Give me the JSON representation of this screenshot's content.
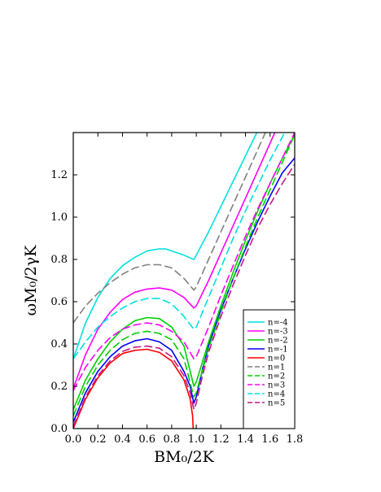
{
  "chart_data": {
    "type": "line",
    "xlabel": "BM₀/2K",
    "ylabel": "ωM₀/2γK",
    "xlim": [
      0.0,
      1.8
    ],
    "ylim": [
      0.0,
      1.4
    ],
    "xticks": [
      "0.0",
      "0.2",
      "0.4",
      "0.6",
      "0.8",
      "1.0",
      "1.2",
      "1.4",
      "1.6",
      "1.8"
    ],
    "yticks": [
      "0.0",
      "0.2",
      "0.4",
      "0.6",
      "0.8",
      "1.0",
      "1.2"
    ],
    "legend_position": "bottom-right",
    "series": [
      {
        "name": "n=-4",
        "color": "#00e0e0",
        "dash": "solid",
        "x": [
          0,
          0.1,
          0.2,
          0.3,
          0.4,
          0.5,
          0.6,
          0.7,
          0.75,
          0.8,
          0.9,
          0.98,
          1.0,
          1.1,
          1.2,
          1.3,
          1.4,
          1.5,
          1.6
        ],
        "y": [
          0.33,
          0.5,
          0.62,
          0.71,
          0.77,
          0.81,
          0.84,
          0.85,
          0.85,
          0.84,
          0.82,
          0.8,
          0.82,
          0.93,
          1.05,
          1.17,
          1.29,
          1.41,
          1.53
        ]
      },
      {
        "name": "n=-3",
        "color": "#ff00ff",
        "dash": "solid",
        "x": [
          0,
          0.1,
          0.2,
          0.3,
          0.4,
          0.5,
          0.6,
          0.7,
          0.8,
          0.9,
          0.98,
          1.0,
          1.1,
          1.2,
          1.3,
          1.4,
          1.5,
          1.6,
          1.7
        ],
        "y": [
          0.19,
          0.35,
          0.47,
          0.55,
          0.61,
          0.645,
          0.66,
          0.665,
          0.655,
          0.62,
          0.57,
          0.58,
          0.7,
          0.83,
          0.96,
          1.09,
          1.22,
          1.35,
          1.48
        ]
      },
      {
        "name": "n=-2",
        "color": "#00d000",
        "dash": "solid",
        "x": [
          0,
          0.1,
          0.2,
          0.3,
          0.4,
          0.5,
          0.6,
          0.7,
          0.8,
          0.9,
          0.98,
          1.0,
          1.1,
          1.2,
          1.3,
          1.4,
          1.5,
          1.6,
          1.7,
          1.8
        ],
        "y": [
          0.09,
          0.23,
          0.33,
          0.41,
          0.47,
          0.51,
          0.525,
          0.52,
          0.48,
          0.39,
          0.2,
          0.22,
          0.41,
          0.58,
          0.74,
          0.89,
          1.03,
          1.16,
          1.28,
          1.39
        ]
      },
      {
        "name": "n=-1",
        "color": "#0000ff",
        "dash": "solid",
        "x": [
          0,
          0.1,
          0.2,
          0.3,
          0.4,
          0.5,
          0.6,
          0.7,
          0.8,
          0.9,
          0.95,
          0.98,
          1.0,
          1.05,
          1.1,
          1.2,
          1.3,
          1.4,
          1.5,
          1.6,
          1.7,
          1.8
        ],
        "y": [
          0.03,
          0.17,
          0.27,
          0.34,
          0.39,
          0.415,
          0.425,
          0.41,
          0.37,
          0.27,
          0.2,
          0.12,
          0.15,
          0.28,
          0.39,
          0.56,
          0.71,
          0.85,
          0.98,
          1.1,
          1.21,
          1.28
        ]
      },
      {
        "name": "n=0",
        "color": "#ff0000",
        "dash": "solid",
        "x": [
          0,
          0.1,
          0.2,
          0.3,
          0.4,
          0.5,
          0.6,
          0.7,
          0.8,
          0.9,
          0.95,
          0.97,
          0.975,
          1.0,
          1.005
        ],
        "y": [
          0.0,
          0.14,
          0.24,
          0.31,
          0.355,
          0.37,
          0.375,
          0.36,
          0.32,
          0.23,
          0.14,
          0.06,
          0.0,
          0.0,
          0.0
        ]
      },
      {
        "name": "n=1",
        "color": "#808080",
        "dash": "longdash",
        "x": [
          0,
          0.1,
          0.2,
          0.3,
          0.4,
          0.5,
          0.6,
          0.7,
          0.8,
          0.9,
          0.98,
          1.0,
          1.1,
          1.2,
          1.3,
          1.4,
          1.5,
          1.6,
          1.7
        ],
        "y": [
          0.5,
          0.58,
          0.64,
          0.69,
          0.73,
          0.76,
          0.775,
          0.775,
          0.76,
          0.71,
          0.655,
          0.67,
          0.8,
          0.93,
          1.06,
          1.19,
          1.32,
          1.45,
          1.58
        ]
      },
      {
        "name": "n=2",
        "color": "#00d000",
        "dash": "longdash",
        "x": [
          0,
          0.1,
          0.2,
          0.3,
          0.4,
          0.5,
          0.6,
          0.7,
          0.8,
          0.9,
          0.98,
          1.0,
          1.1,
          1.2,
          1.3,
          1.4,
          1.5,
          1.6,
          1.7,
          1.8
        ],
        "y": [
          0.06,
          0.2,
          0.3,
          0.37,
          0.42,
          0.45,
          0.46,
          0.45,
          0.42,
          0.33,
          0.15,
          0.17,
          0.38,
          0.55,
          0.71,
          0.86,
          1.0,
          1.13,
          1.26,
          1.39
        ]
      },
      {
        "name": "n=3",
        "color": "#ff00ff",
        "dash": "longdash",
        "x": [
          0,
          0.1,
          0.2,
          0.3,
          0.4,
          0.5,
          0.6,
          0.7,
          0.8,
          0.9,
          0.98,
          1.0,
          1.1,
          1.2,
          1.3,
          1.4,
          1.5,
          1.6,
          1.7,
          1.8
        ],
        "y": [
          0.18,
          0.29,
          0.37,
          0.43,
          0.47,
          0.49,
          0.5,
          0.49,
          0.46,
          0.41,
          0.33,
          0.34,
          0.48,
          0.63,
          0.77,
          0.91,
          1.04,
          1.16,
          1.28,
          1.4
        ]
      },
      {
        "name": "n=4",
        "color": "#00e0e0",
        "dash": "longdash",
        "x": [
          0,
          0.1,
          0.2,
          0.3,
          0.4,
          0.5,
          0.6,
          0.7,
          0.8,
          0.9,
          0.98,
          1.0,
          1.1,
          1.2,
          1.3,
          1.4,
          1.5,
          1.6,
          1.7,
          1.8
        ],
        "y": [
          0.33,
          0.41,
          0.48,
          0.53,
          0.57,
          0.6,
          0.615,
          0.615,
          0.59,
          0.53,
          0.47,
          0.48,
          0.62,
          0.76,
          0.9,
          1.03,
          1.15,
          1.27,
          1.38,
          1.49
        ]
      },
      {
        "name": "n=5",
        "color": "#c71585",
        "dash": "longdash",
        "x": [
          0,
          0.1,
          0.2,
          0.3,
          0.4,
          0.5,
          0.6,
          0.7,
          0.8,
          0.9,
          0.95,
          0.98,
          1.0,
          1.05,
          1.1,
          1.2,
          1.3,
          1.4,
          1.5,
          1.6,
          1.7,
          1.8
        ],
        "y": [
          0.01,
          0.15,
          0.25,
          0.32,
          0.365,
          0.385,
          0.39,
          0.38,
          0.34,
          0.25,
          0.17,
          0.09,
          0.12,
          0.25,
          0.36,
          0.53,
          0.68,
          0.82,
          0.95,
          1.06,
          1.16,
          1.25
        ]
      }
    ]
  }
}
